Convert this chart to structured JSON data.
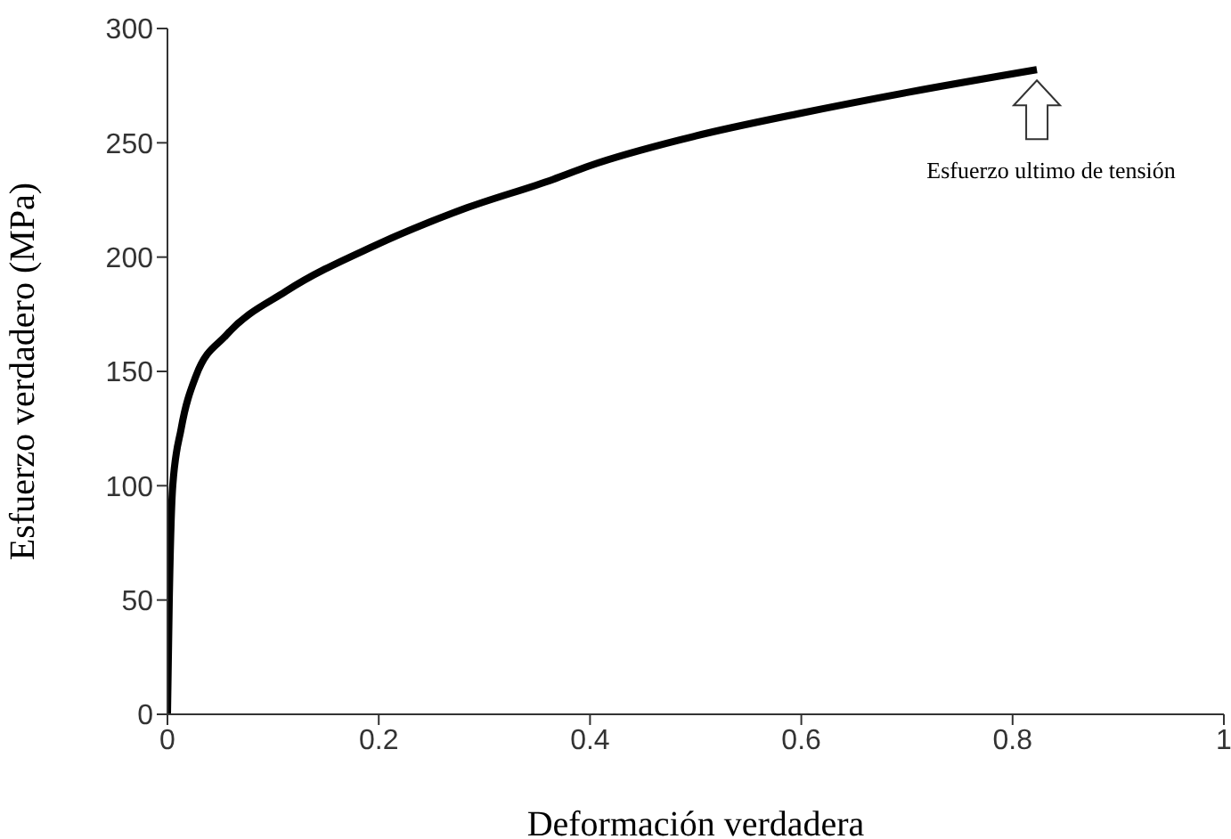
{
  "chart_data": {
    "type": "line",
    "xlabel": "Deformación verdadera",
    "ylabel": "Esfuerzo verdadero (MPa)",
    "x": [
      0,
      0.0017,
      0.005,
      0.013,
      0.027,
      0.056,
      0.112,
      0.196,
      0.28,
      0.365,
      0.4,
      0.5,
      0.6,
      0.7,
      0.823
    ],
    "series": [
      {
        "color": "#000000",
        "values": [
          0,
          50,
          100,
          125,
          148,
          166,
          185,
          205,
          221,
          234,
          240,
          253,
          263,
          272,
          282
        ]
      }
    ],
    "xlim": [
      0,
      1
    ],
    "xticks": [
      0,
      0.2,
      0.4,
      0.6,
      0.8,
      1
    ],
    "ylim": [
      0,
      300
    ],
    "yticks": [
      0,
      50,
      100,
      150,
      200,
      250,
      300
    ],
    "grid": false,
    "legend": false,
    "marker": "none",
    "line_style": "solid",
    "annotations": [
      "Esfuerzo ultimo de tensión"
    ]
  }
}
